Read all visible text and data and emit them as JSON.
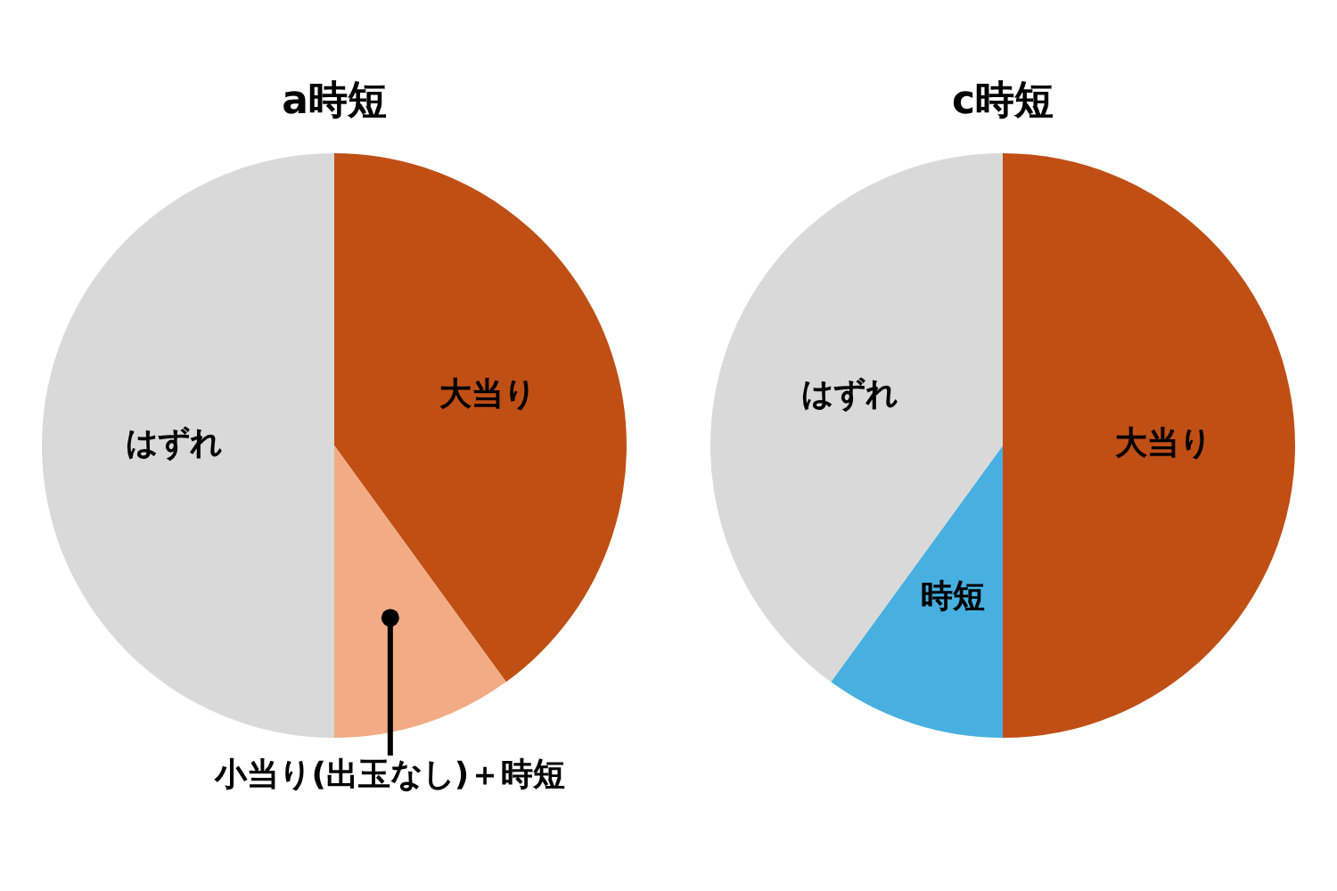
{
  "chart_data": [
    {
      "type": "pie",
      "title": "a時短",
      "categories": [
        "大当り",
        "小当り(出玉なし)＋時短",
        "はずれ"
      ],
      "values": [
        40,
        10,
        50
      ],
      "colors": [
        "#c04f15",
        "#f2ab84",
        "#d9d9d9"
      ]
    },
    {
      "type": "pie",
      "title": "c時短",
      "categories": [
        "大当り",
        "時短",
        "はずれ"
      ],
      "values": [
        50,
        10,
        40
      ],
      "colors": [
        "#c04f15",
        "#47b0e0",
        "#d9d9d9"
      ]
    }
  ]
}
